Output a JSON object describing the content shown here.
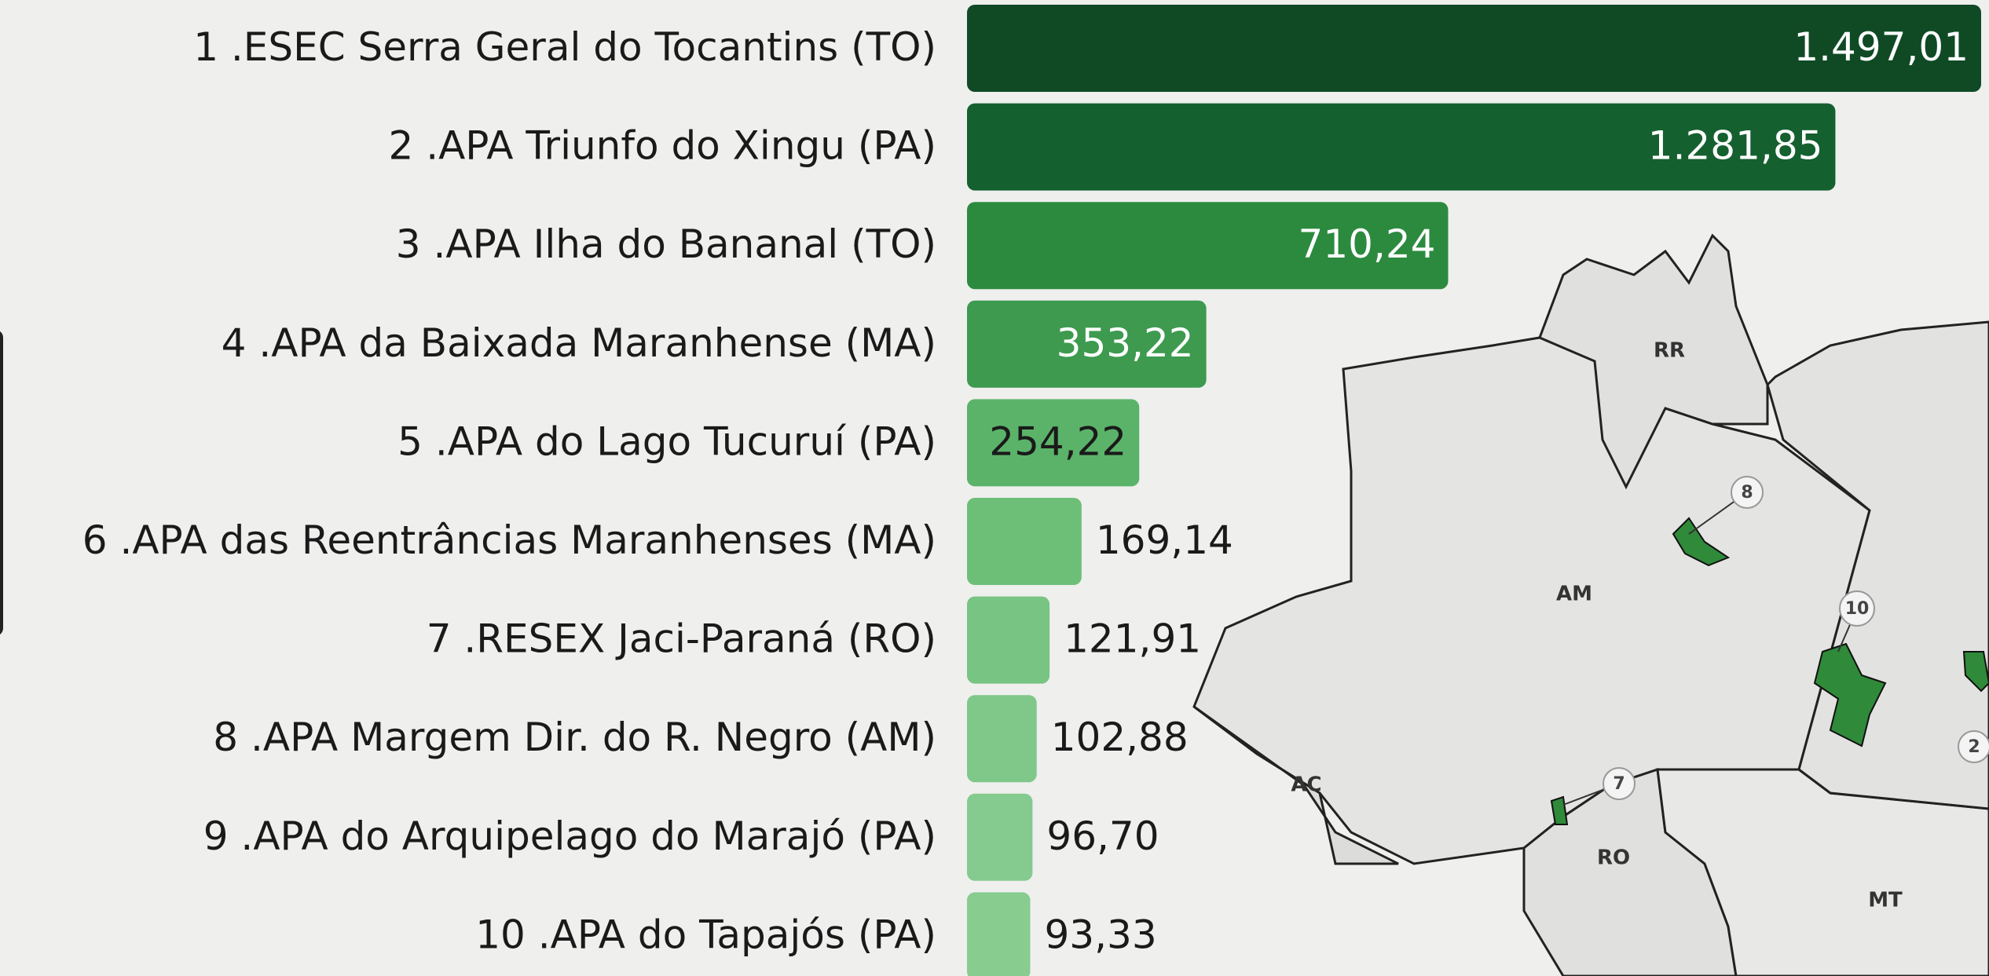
{
  "chart_data": {
    "type": "bar",
    "orientation": "horizontal",
    "categories": [
      "1 .ESEC Serra Geral do Tocantins (TO)",
      "2 .APA Triunfo do Xingu (PA)",
      "3 .APA Ilha do Bananal (TO)",
      "4 .APA da Baixada Maranhense (MA)",
      "5 .APA do Lago Tucuruí (PA)",
      "6 .APA das Reentrâncias Maranhenses (MA)",
      "7 .RESEX Jaci-Paraná (RO)",
      "8 .APA Margem Dir. do R. Negro (AM)",
      "9 .APA do Arquipelago do Marajó (PA)",
      "10 .APA do Tapajós (PA)"
    ],
    "values": [
      1497.01,
      1281.85,
      710.24,
      353.22,
      254.22,
      169.14,
      121.91,
      102.88,
      96.7,
      93.33
    ],
    "value_labels": [
      "1.497,01",
      "1.281,85",
      "710,24",
      "353,22",
      "254,22",
      "169,14",
      "121,91",
      "102,88",
      "96,70",
      "93,33"
    ],
    "colors": [
      "#0f4a25",
      "#15602f",
      "#2b8a3e",
      "#3d9a4f",
      "#5bb36a",
      "#6dbf78",
      "#78c482",
      "#80c88a",
      "#85ca8e",
      "#88cc90"
    ]
  },
  "map": {
    "state_labels": [
      "RR",
      "AM",
      "AC",
      "RO",
      "MT"
    ],
    "markers": [
      "8",
      "10",
      "7",
      "2"
    ]
  }
}
